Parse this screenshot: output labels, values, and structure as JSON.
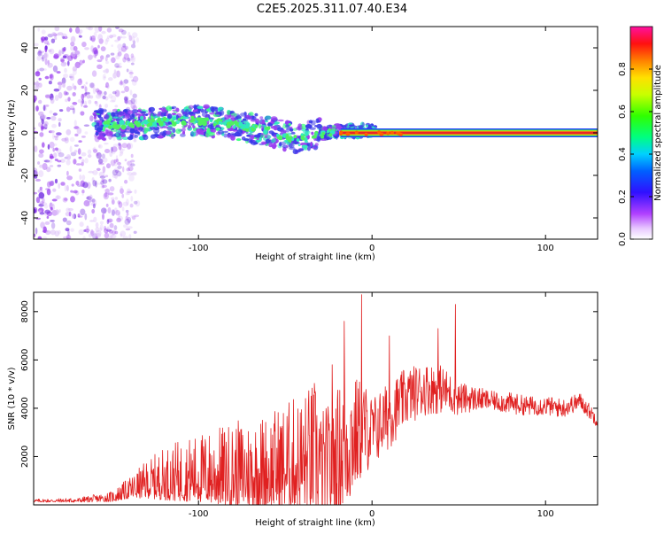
{
  "title": "C2E5.2025.311.07.40.E34",
  "colors": {
    "snr_line": "#e02020",
    "band_center": "#e8242a",
    "band_inner": "#f0d000",
    "band_outer": "#2040ff",
    "scatter_low": "#9a3df0",
    "scatter_mid": "#3a3ae8",
    "scatter_hi": "#30e8c0"
  },
  "chart_data": [
    {
      "type": "heatmap",
      "name": "spectrogram",
      "xlabel": "Height of straight line (km)",
      "ylabel": "Frequency (Hz)",
      "xlim": [
        -195,
        130
      ],
      "ylim": [
        -50,
        50
      ],
      "xticks": [
        -100,
        0,
        100
      ],
      "xtick_labels": [
        "-100",
        "0",
        "100"
      ],
      "yticks": [
        -40,
        -20,
        0,
        20,
        40
      ],
      "ytick_labels": [
        "-40",
        "-20",
        "0",
        "20",
        "40"
      ],
      "colorbar": {
        "label": "Normalized spectral amplitude",
        "range": [
          0.0,
          1.0
        ],
        "ticks": [
          0.0,
          0.2,
          0.4,
          0.6,
          0.8
        ],
        "tick_labels": [
          "0.0",
          "0.2",
          "0.4",
          "0.6",
          "0.8"
        ]
      },
      "ridge": {
        "x": [
          -160,
          -140,
          -120,
          -100,
          -80,
          -60,
          -45,
          -35,
          -25,
          -18,
          0,
          20,
          130
        ],
        "y": [
          4,
          4,
          5,
          6,
          4,
          1,
          -3,
          -1,
          0,
          1,
          1,
          0,
          0
        ]
      },
      "steady_band": {
        "x_start": -18,
        "x_end": 130,
        "freq": 0
      },
      "noise_region": {
        "x_start": -195,
        "x_end": -140
      }
    },
    {
      "type": "line",
      "name": "snr",
      "xlabel": "Height of straight line (km)",
      "ylabel": "SNR (10 * v/v)",
      "xlim": [
        -195,
        130
      ],
      "ylim": [
        0,
        8800
      ],
      "xticks": [
        -100,
        0,
        100
      ],
      "xtick_labels": [
        "-100",
        "0",
        "100"
      ],
      "yticks": [
        2000,
        4000,
        6000,
        8000
      ],
      "ytick_labels": [
        "2000",
        "4000",
        "6000",
        "8000"
      ],
      "envelope": {
        "x": [
          -195,
          -170,
          -150,
          -140,
          -130,
          -120,
          -100,
          -80,
          -60,
          -40,
          -25,
          -15,
          -5,
          0,
          10,
          20,
          30,
          40,
          50,
          60,
          70,
          80,
          90,
          100,
          110,
          120,
          130
        ],
        "mid": [
          150,
          160,
          250,
          500,
          700,
          800,
          900,
          900,
          1000,
          1200,
          1400,
          2500,
          3200,
          3000,
          3700,
          4500,
          4800,
          4800,
          4400,
          4400,
          4300,
          4200,
          4100,
          4100,
          4000,
          4300,
          3500
        ],
        "amp": [
          60,
          80,
          200,
          400,
          700,
          1000,
          1300,
          1600,
          1800,
          2200,
          2800,
          3000,
          2000,
          1500,
          1400,
          1200,
          1100,
          1000,
          700,
          500,
          400,
          450,
          400,
          400,
          400,
          350,
          300
        ]
      },
      "peaks": [
        {
          "x": -6,
          "y": 8700
        },
        {
          "x": -16,
          "y": 7600
        },
        {
          "x": 48,
          "y": 8300
        },
        {
          "x": 38,
          "y": 7300
        },
        {
          "x": 10,
          "y": 7000
        },
        {
          "x": -23,
          "y": 5800
        }
      ]
    }
  ]
}
